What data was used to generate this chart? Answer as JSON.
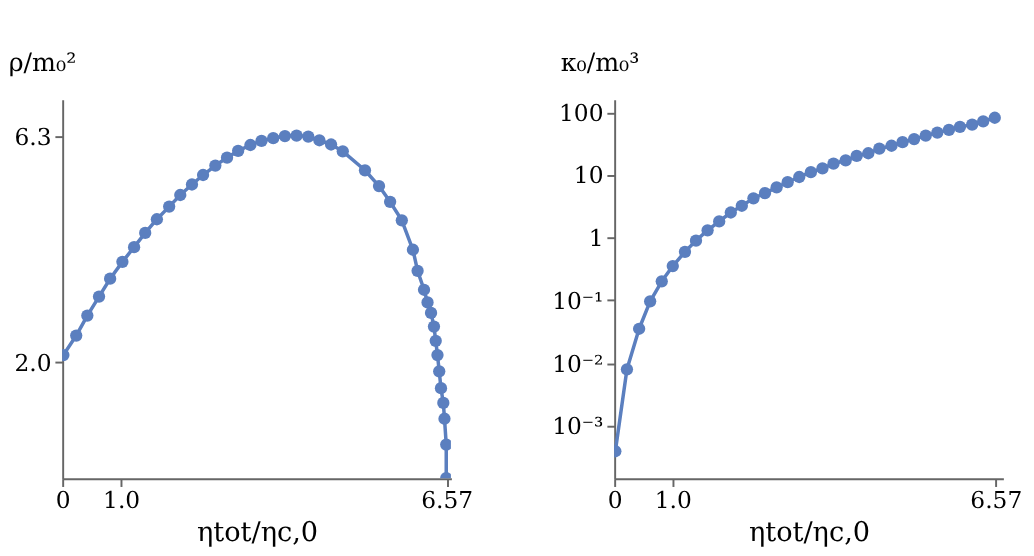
{
  "chart_data": [
    {
      "type": "line",
      "xlabel": "ηtot/ηc,0",
      "ylabel": "ρ/m₀²",
      "marker": "circle",
      "line_style": "solid",
      "grid": false,
      "xlim": [
        0,
        6.65
      ],
      "xticks": [
        0,
        {
          "value": 1,
          "label": "1.0"
        },
        6.57
      ],
      "ylim": [
        -0.2,
        7.0
      ],
      "yticks": [
        6.3,
        {
          "value": 2,
          "label": "2.0"
        }
      ],
      "series": [
        {
          "color": "#5b7fbf",
          "x": [
            0.02,
            0.24,
            0.43,
            0.63,
            0.82,
            1.03,
            1.23,
            1.42,
            1.62,
            1.83,
            2.02,
            2.22,
            2.41,
            2.62,
            2.82,
            3.01,
            3.22,
            3.41,
            3.61,
            3.81,
            4.01,
            4.21,
            4.4,
            4.6,
            4.8,
            5.18,
            5.42,
            5.61,
            5.81,
            6.0,
            6.08,
            6.19,
            6.25,
            6.31,
            6.36,
            6.39,
            6.42,
            6.45,
            6.48,
            6.52,
            6.54,
            6.57,
            6.57
          ],
          "values": [
            2.14,
            2.51,
            2.89,
            3.25,
            3.59,
            3.91,
            4.19,
            4.46,
            4.72,
            4.96,
            5.18,
            5.38,
            5.56,
            5.74,
            5.89,
            6.02,
            6.13,
            6.21,
            6.26,
            6.3,
            6.31,
            6.29,
            6.22,
            6.14,
            6.01,
            5.65,
            5.35,
            5.05,
            4.7,
            4.14,
            3.74,
            3.38,
            3.14,
            2.94,
            2.68,
            2.41,
            2.14,
            1.83,
            1.51,
            1.23,
            0.93,
            0.44,
            -0.2
          ]
        }
      ]
    },
    {
      "type": "line",
      "xlabel": "ηtot/ηc,0",
      "ylabel": "κ₀/m₀³",
      "marker": "circle",
      "line_style": "solid",
      "grid": false,
      "log": "y",
      "xlim": [
        0,
        6.7
      ],
      "xticks": [
        0,
        {
          "value": 1,
          "label": "1.0"
        },
        6.57
      ],
      "ylim": [
        0.000145,
        160
      ],
      "yticks": [
        100,
        10,
        1,
        {
          "value": 0.1,
          "label": "10⁻¹"
        },
        {
          "value": 0.01,
          "label": "10⁻²"
        },
        {
          "value": 0.001,
          "label": "10⁻³"
        }
      ],
      "series": [
        {
          "color": "#5b7fbf",
          "x": [
            0.02,
            0.22,
            0.43,
            0.62,
            0.82,
            1.01,
            1.22,
            1.41,
            1.61,
            1.81,
            2.01,
            2.2,
            2.4,
            2.6,
            2.8,
            2.99,
            3.19,
            3.39,
            3.59,
            3.78,
            3.99,
            4.18,
            4.38,
            4.57,
            4.78,
            4.97,
            5.17,
            5.37,
            5.57,
            5.77,
            5.96,
            6.17,
            6.36,
            6.56
          ],
          "values": [
            0.00039,
            0.0079,
            0.035,
            0.096,
            0.2,
            0.35,
            0.59,
            0.89,
            1.3,
            1.8,
            2.5,
            3.2,
            4.2,
            5.1,
            6.3,
            7.6,
            9.2,
            11,
            12.6,
            15,
            17,
            20,
            22,
            26,
            29,
            33,
            37,
            42,
            47,
            52,
            58,
            63,
            71,
            81
          ]
        }
      ]
    }
  ]
}
